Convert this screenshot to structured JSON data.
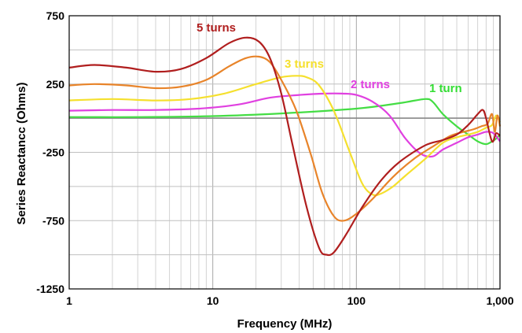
{
  "chart_data": {
    "type": "line",
    "xlabel": "Frequency  (MHz)",
    "ylabel": "Series Reactancc  (Ohms)",
    "x_scale": "log",
    "xlim": [
      1,
      1000
    ],
    "ylim": [
      -1250,
      750
    ],
    "grid": true,
    "x_ticks": [
      {
        "value": 1,
        "label": "1"
      },
      {
        "value": 10,
        "label": "10"
      },
      {
        "value": 100,
        "label": "100"
      },
      {
        "value": 1000,
        "label": "1,000"
      }
    ],
    "y_ticks": [
      {
        "value": 750,
        "label": "750"
      },
      {
        "value": 250,
        "label": "250"
      },
      {
        "value": -250,
        "label": "-250"
      },
      {
        "value": -750,
        "label": "-750"
      },
      {
        "value": -1250,
        "label": "-1250"
      }
    ],
    "series": [
      {
        "name": "5 turns",
        "color": "#b01e1e",
        "x": [
          1,
          1.5,
          2.5,
          4,
          6,
          9,
          13,
          17,
          21,
          25,
          30,
          36,
          45,
          55,
          62,
          70,
          85,
          110,
          150,
          200,
          300,
          400,
          500,
          600,
          700,
          760,
          800,
          880,
          940,
          1000
        ],
        "y": [
          370,
          390,
          370,
          340,
          360,
          440,
          550,
          590,
          560,
          440,
          180,
          -200,
          -650,
          -950,
          -1000,
          -980,
          -850,
          -650,
          -450,
          -320,
          -200,
          -160,
          -120,
          -50,
          30,
          60,
          0,
          -170,
          -110,
          -130
        ]
      },
      {
        "name": "3 turns",
        "color": "#e8842a",
        "x": [
          1,
          1.5,
          2.5,
          4,
          6,
          9,
          13,
          17,
          21,
          25,
          30,
          38,
          48,
          58,
          70,
          82,
          100,
          130,
          180,
          250,
          350,
          450,
          560,
          660,
          740,
          820,
          880,
          920,
          960,
          1000
        ],
        "y": [
          240,
          250,
          240,
          220,
          230,
          280,
          380,
          440,
          450,
          410,
          280,
          60,
          -260,
          -550,
          -720,
          -750,
          -700,
          -590,
          -430,
          -300,
          -200,
          -130,
          -100,
          -80,
          -60,
          -40,
          30,
          -100,
          20,
          -60
        ]
      },
      {
        "name": "2 turns",
        "color": "#f5e02e",
        "x": [
          1,
          2,
          4,
          7,
          12,
          20,
          30,
          38,
          45,
          55,
          70,
          90,
          110,
          130,
          150,
          180,
          220,
          300,
          400,
          500,
          600,
          700,
          800,
          880,
          940,
          1000
        ],
        "y": [
          130,
          140,
          130,
          140,
          180,
          250,
          300,
          310,
          300,
          240,
          50,
          -250,
          -480,
          -560,
          -550,
          -500,
          -420,
          -300,
          -180,
          -140,
          -120,
          -100,
          -70,
          -50,
          20,
          -30
        ]
      },
      {
        "name": "1 turn",
        "color": "#e040e0",
        "x": [
          1,
          2,
          4,
          8,
          15,
          25,
          40,
          60,
          80,
          100,
          130,
          170,
          220,
          280,
          340,
          400,
          500,
          600,
          700,
          800,
          900,
          1000
        ],
        "y": [
          55,
          60,
          60,
          70,
          100,
          150,
          170,
          180,
          180,
          170,
          120,
          20,
          -150,
          -260,
          -280,
          -230,
          -180,
          -140,
          -120,
          -100,
          -110,
          -170
        ]
      },
      {
        "name": "",
        "color": "#44dd44",
        "x": [
          1,
          3,
          10,
          30,
          100,
          200,
          300,
          340,
          400,
          500,
          600,
          700,
          800,
          880,
          940,
          1000
        ],
        "y": [
          8,
          8,
          15,
          35,
          70,
          110,
          140,
          120,
          30,
          -60,
          -120,
          -170,
          -190,
          -170,
          -150,
          -120
        ]
      },
      {
        "name": "",
        "color": "#888888",
        "x": [
          1,
          1000
        ],
        "y": [
          0,
          0
        ]
      }
    ],
    "annotations": [
      {
        "text": "5 turns",
        "color": "#b01e1e"
      },
      {
        "text": "3 turns",
        "color": "#f5e02e"
      },
      {
        "text": "2 turns",
        "color": "#e040e0"
      },
      {
        "text": "1 turn",
        "color": "#33dd33"
      }
    ]
  }
}
